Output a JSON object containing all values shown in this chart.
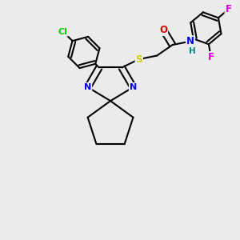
{
  "background_color": "#ebebeb",
  "atom_colors": {
    "C": "#000000",
    "N": "#0000ee",
    "O": "#dd0000",
    "S": "#cccc00",
    "Cl": "#00cc00",
    "F": "#dd00dd",
    "H": "#008888"
  },
  "bond_color": "#000000",
  "figsize": [
    3.0,
    3.0
  ],
  "dpi": 100
}
